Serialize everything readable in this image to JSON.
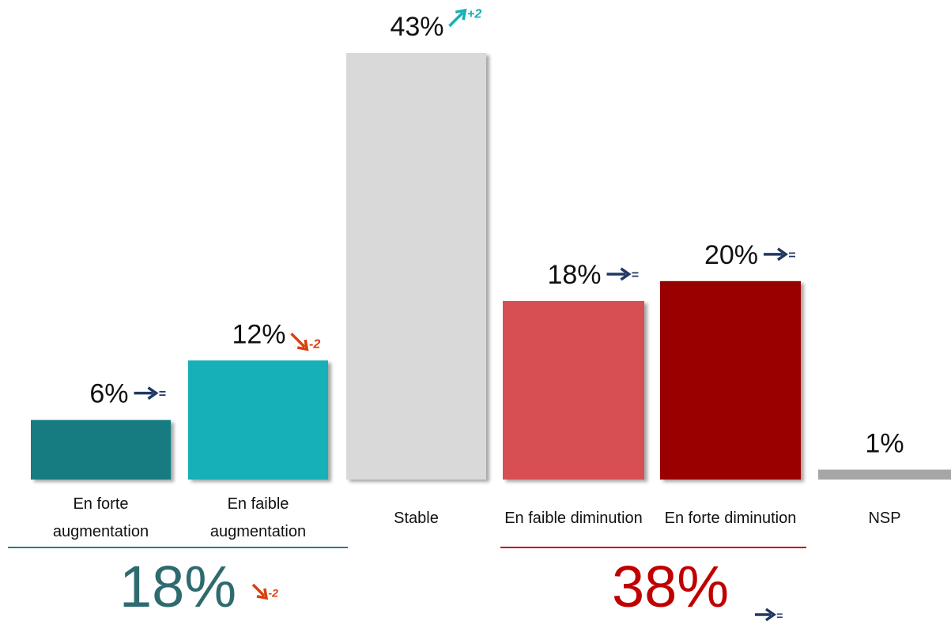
{
  "chart_data": {
    "type": "bar",
    "categories": [
      "En forte augmentation",
      "En faible augmentation",
      "Stable",
      "En faible diminution",
      "En forte diminution",
      "NSP"
    ],
    "values": [
      6,
      12,
      43,
      18,
      20,
      1
    ],
    "value_labels": [
      "6%",
      "12%",
      "43%",
      "18%",
      "20%",
      "1%"
    ],
    "colors": [
      "#127c82",
      "#14b0b8",
      "#d9d9d9",
      "#d84f52",
      "#990000",
      "#a6a6a6"
    ],
    "trends": [
      {
        "label": "=",
        "direction": "right",
        "color": "#1f3864"
      },
      {
        "label": "-2",
        "direction": "down",
        "color": "#d9400f"
      },
      {
        "label": "+2",
        "direction": "up",
        "color": "#14b0b8"
      },
      {
        "label": "=",
        "direction": "right",
        "color": "#1f3864"
      },
      {
        "label": "=",
        "direction": "right",
        "color": "#1f3864"
      },
      null
    ],
    "ylim": [
      0,
      43
    ],
    "groups": [
      {
        "value": 18,
        "value_label": "18%",
        "color": "#2e6b70",
        "line_color": "#2e7b82",
        "trend": {
          "label": "-2",
          "direction": "down",
          "color": "#d9400f"
        }
      },
      {
        "value": 38,
        "value_label": "38%",
        "color": "#c00000",
        "line_color": "#c00000",
        "trend": {
          "label": "=",
          "direction": "right",
          "color": "#1f3864"
        }
      }
    ]
  }
}
